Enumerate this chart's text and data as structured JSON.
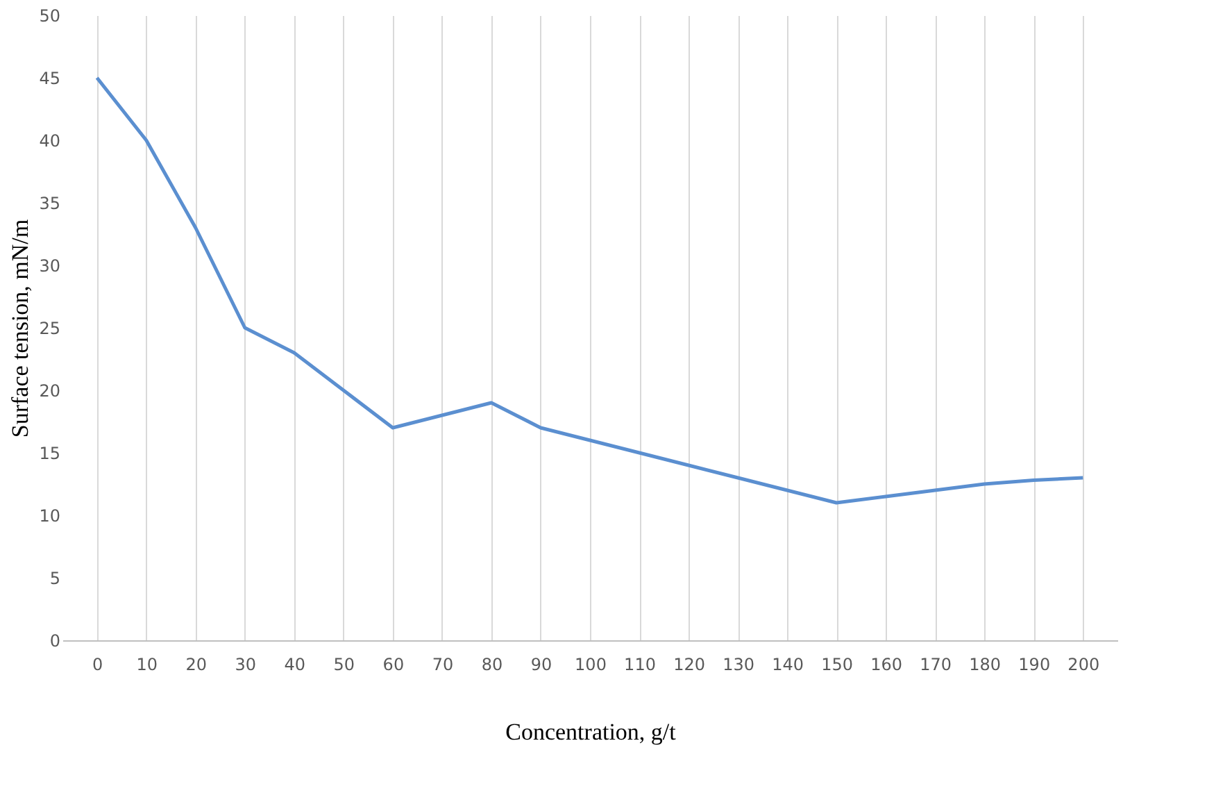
{
  "chart_data": {
    "type": "line",
    "xlabel": "Concentration,  g/t",
    "ylabel": "Surface tension, mN/m",
    "categories": [
      "0",
      "10",
      "20",
      "30",
      "40",
      "50",
      "60",
      "70",
      "80",
      "90",
      "100",
      "110",
      "120",
      "130",
      "140",
      "150",
      "160",
      "170",
      "180",
      "190",
      "200"
    ],
    "series": [
      {
        "color": "#5b8fd0",
        "values": [
          45,
          40,
          33,
          25,
          23,
          20,
          17,
          18,
          19,
          17,
          16,
          15,
          14,
          13,
          12,
          11,
          11.5,
          12,
          12.5,
          12.8,
          13
        ]
      }
    ],
    "ylim": [
      0,
      50
    ],
    "yticks": [
      0,
      5,
      10,
      15,
      20,
      25,
      30,
      35,
      40,
      45,
      50
    ],
    "grid": "x",
    "marker": "none",
    "line_style": "solid"
  }
}
